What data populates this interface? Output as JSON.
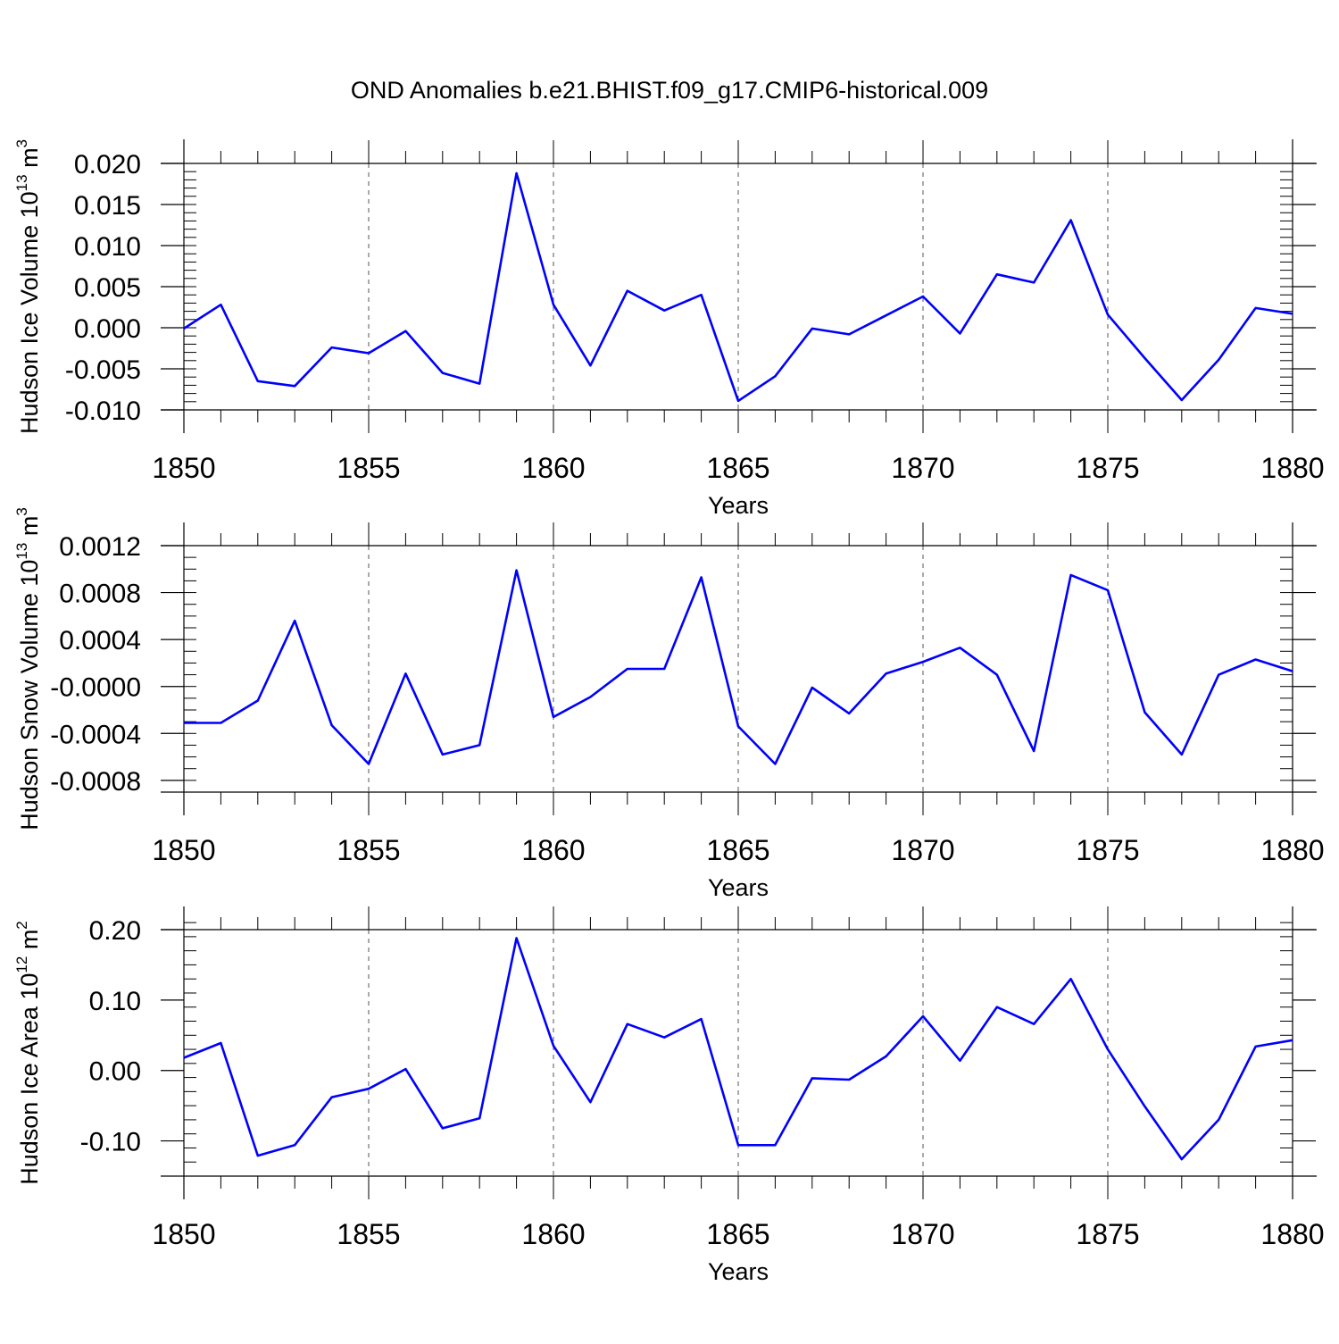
{
  "title": "OND Anomalies b.e21.BHIST.f09_g17.CMIP6-historical.009",
  "colors": {
    "line": "#0000ff",
    "axis": "#000000",
    "grid": "#555555"
  },
  "chart_data": [
    {
      "type": "line",
      "xlabel": "Years",
      "ylabel": "Hudson Ice Volume 10",
      "ylabel_sup": "13",
      "ylabel_unit": "m",
      "ylabel_unit_sup": "3",
      "xlim": [
        1850,
        1880
      ],
      "ylim": [
        -0.01,
        0.02
      ],
      "xticks": [
        "1850",
        "1855",
        "1860",
        "1865",
        "1870",
        "1875",
        "1880"
      ],
      "yticks": [
        "-0.010",
        "-0.005",
        "0.000",
        "0.005",
        "0.010",
        "0.015",
        "0.020"
      ],
      "grid": "vertical dashed",
      "series": [
        {
          "x": [
            1850,
            1851,
            1852,
            1853,
            1854,
            1855,
            1856,
            1857,
            1858,
            1859,
            1860,
            1861,
            1862,
            1863,
            1864,
            1865,
            1866,
            1867,
            1868,
            1869,
            1870,
            1871,
            1872,
            1873,
            1874,
            1875,
            1876,
            1877,
            1878,
            1879,
            1880
          ],
          "values": [
            -0.0001,
            0.0028,
            -0.0065,
            -0.0071,
            -0.0024,
            -0.0031,
            -0.0004,
            -0.0055,
            -0.0068,
            0.0188,
            0.0028,
            -0.0046,
            0.0045,
            0.0021,
            0.004,
            -0.0089,
            -0.0059,
            -0.0001,
            -0.0008,
            0.0015,
            0.0038,
            -0.0007,
            0.0065,
            0.0055,
            0.0131,
            0.0016,
            -0.0037,
            -0.0088,
            -0.0039,
            0.0024,
            0.0017
          ]
        }
      ]
    },
    {
      "type": "line",
      "xlabel": "Years",
      "ylabel": "Hudson Snow Volume 10",
      "ylabel_sup": "13",
      "ylabel_unit": "m",
      "ylabel_unit_sup": "3",
      "xlim": [
        1850,
        1880
      ],
      "ylim": [
        -0.0009,
        0.0012
      ],
      "xticks": [
        "1850",
        "1855",
        "1860",
        "1865",
        "1870",
        "1875",
        "1880"
      ],
      "yticks": [
        "-0.0008",
        "-0.0004",
        "-0.0000",
        "0.0004",
        "0.0008",
        "0.0012"
      ],
      "ytick_values": [
        -0.0008,
        -0.0004,
        0.0,
        0.0004,
        0.0008,
        0.0012
      ],
      "grid": "vertical dashed",
      "series": [
        {
          "x": [
            1850,
            1851,
            1852,
            1853,
            1854,
            1855,
            1856,
            1857,
            1858,
            1859,
            1860,
            1861,
            1862,
            1863,
            1864,
            1865,
            1866,
            1867,
            1868,
            1869,
            1870,
            1871,
            1872,
            1873,
            1874,
            1875,
            1876,
            1877,
            1878,
            1879,
            1880
          ],
          "values": [
            -0.00031,
            -0.00031,
            -0.00012,
            0.00056,
            -0.00033,
            -0.00066,
            0.00011,
            -0.00058,
            -0.0005,
            0.00099,
            -0.00026,
            -9e-05,
            0.00015,
            0.00015,
            0.00093,
            -0.00034,
            -0.00066,
            -1e-05,
            -0.00023,
            0.00011,
            0.00021,
            0.00033,
            0.0001,
            -0.00055,
            0.00095,
            0.00082,
            -0.00022,
            -0.00058,
            0.0001,
            0.00023,
            0.00013
          ]
        }
      ]
    },
    {
      "type": "line",
      "xlabel": "Years",
      "ylabel": "Hudson Ice Area 10",
      "ylabel_sup": "12",
      "ylabel_unit": "m",
      "ylabel_unit_sup": "2",
      "xlim": [
        1850,
        1880
      ],
      "ylim": [
        -0.15,
        0.2
      ],
      "xticks": [
        "1850",
        "1855",
        "1860",
        "1865",
        "1870",
        "1875",
        "1880"
      ],
      "yticks": [
        "-0.10",
        "0.00",
        "0.10",
        "0.20"
      ],
      "ytick_values": [
        -0.1,
        0.0,
        0.1,
        0.2
      ],
      "grid": "vertical dashed",
      "series": [
        {
          "x": [
            1850,
            1851,
            1852,
            1853,
            1854,
            1855,
            1856,
            1857,
            1858,
            1859,
            1860,
            1861,
            1862,
            1863,
            1864,
            1865,
            1866,
            1867,
            1868,
            1869,
            1870,
            1871,
            1872,
            1873,
            1874,
            1875,
            1876,
            1877,
            1878,
            1879,
            1880
          ],
          "values": [
            0.018,
            0.039,
            -0.121,
            -0.106,
            -0.038,
            -0.026,
            0.002,
            -0.082,
            -0.068,
            0.188,
            0.035,
            -0.045,
            0.066,
            0.047,
            0.073,
            -0.106,
            -0.106,
            -0.011,
            -0.013,
            0.02,
            0.077,
            0.014,
            0.09,
            0.066,
            0.13,
            0.03,
            -0.051,
            -0.126,
            -0.07,
            0.034,
            0.043
          ]
        }
      ]
    }
  ]
}
